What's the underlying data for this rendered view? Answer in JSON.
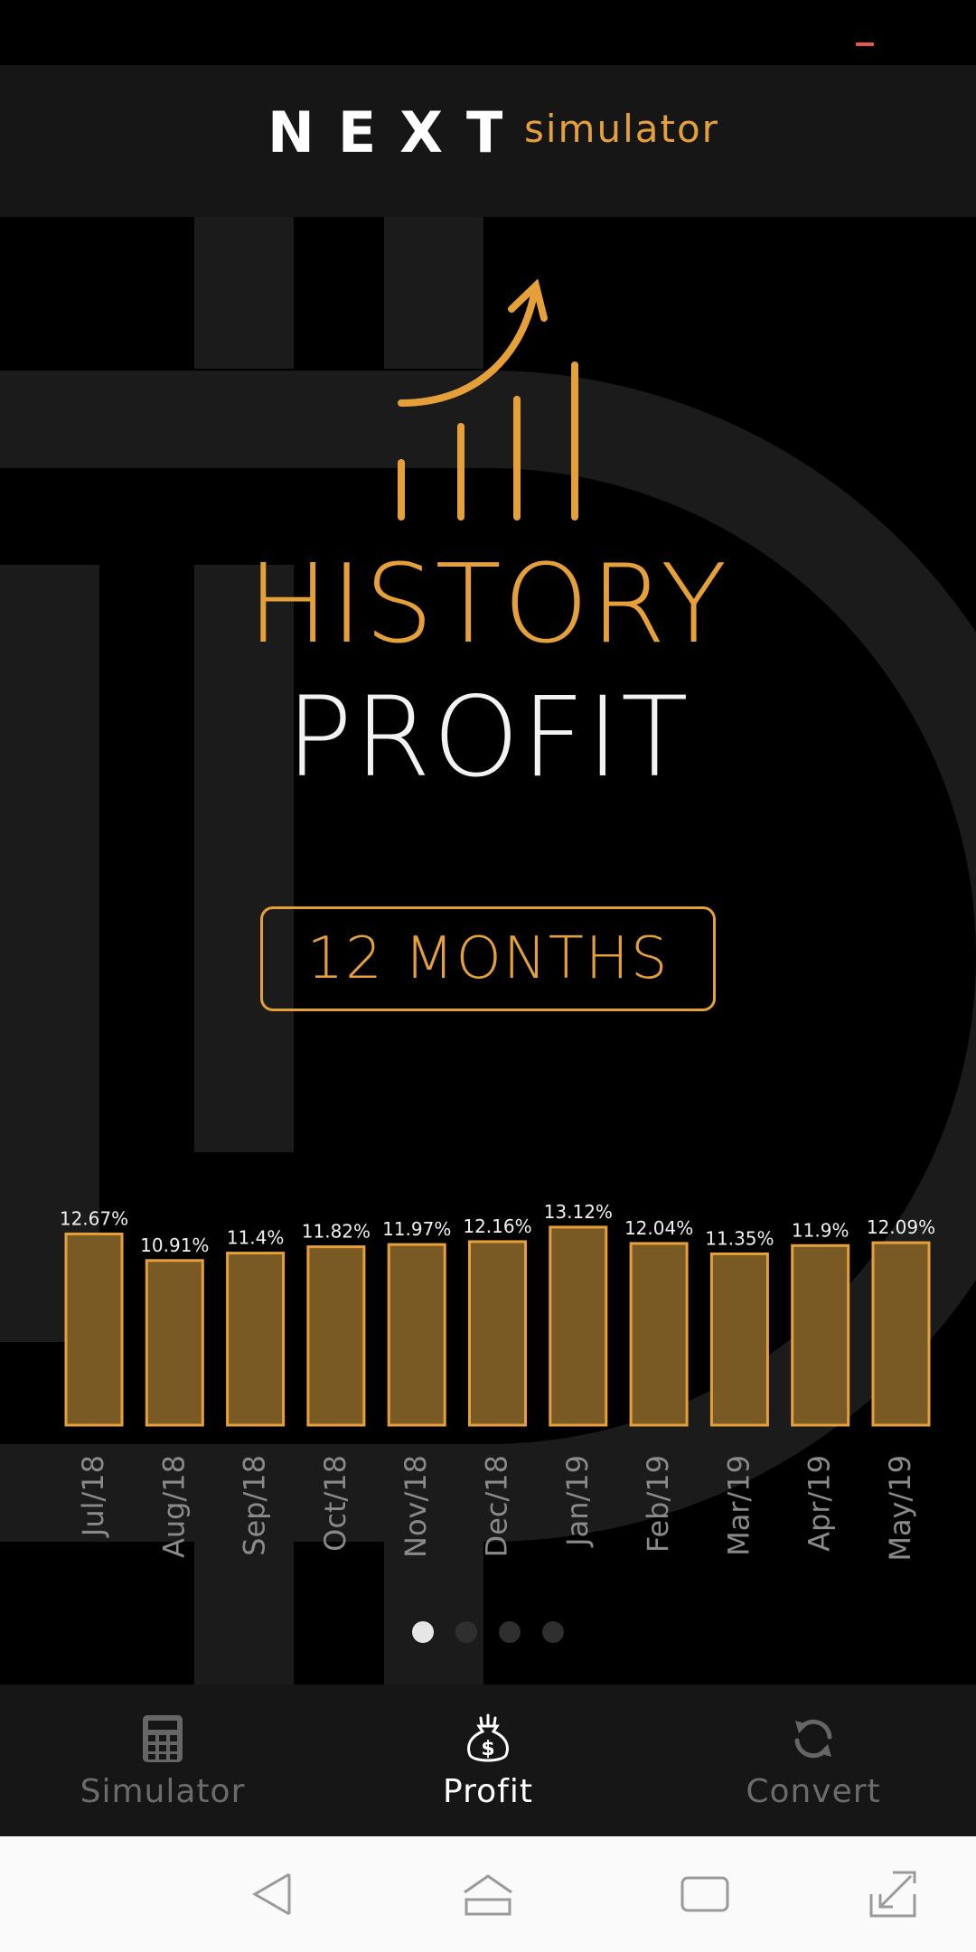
{
  "app": {
    "logo_text": "NEXT",
    "logo_suffix": "simulator"
  },
  "hero": {
    "icon": "growth-chart-icon",
    "title": "HISTORY",
    "subtitle": "PROFIT"
  },
  "period": {
    "label": "12 MONTHS"
  },
  "chart_data": {
    "type": "bar",
    "categories": [
      "Jul/18",
      "Aug/18",
      "Sep/18",
      "Oct/18",
      "Nov/18",
      "Dec/18",
      "Jan/19",
      "Feb/19",
      "Mar/19",
      "Apr/19",
      "May/19"
    ],
    "values": [
      12.67,
      10.91,
      11.4,
      11.82,
      11.97,
      12.16,
      13.12,
      12.04,
      11.35,
      11.9,
      12.09
    ],
    "labels": [
      "12.67%",
      "10.91%",
      "11.4%",
      "11.82%",
      "11.97%",
      "12.16%",
      "13.12%",
      "12.04%",
      "11.35%",
      "11.9%",
      "12.09%"
    ],
    "title": "",
    "xlabel": "",
    "ylabel": "",
    "grid": false,
    "colors": {
      "bar_fill": "#7a5a24",
      "bar_stroke": "#e6a03a",
      "label": "#f0f0f0",
      "tick": "#8a8a8a"
    }
  },
  "pager": {
    "count": 4,
    "active": 0
  },
  "nav": {
    "items": [
      {
        "label": "Simulator",
        "icon": "calculator-icon",
        "active": false
      },
      {
        "label": "Profit",
        "icon": "money-bag-icon",
        "active": true
      },
      {
        "label": "Convert",
        "icon": "refresh-icon",
        "active": false
      }
    ]
  },
  "system_nav": {
    "icons": [
      "back-icon",
      "home-icon",
      "recents-icon",
      "expand-icon"
    ]
  },
  "colors": {
    "accent": "#e6a03a",
    "background": "#000000",
    "header": "#161616"
  }
}
